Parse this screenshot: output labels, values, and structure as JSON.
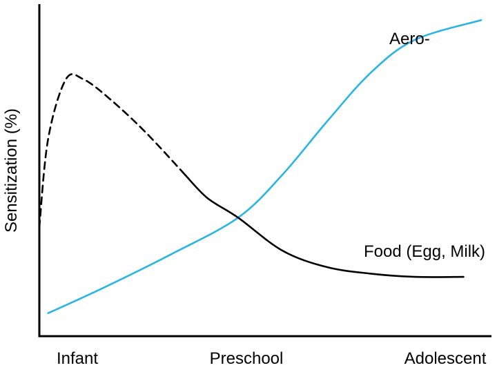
{
  "chart_data": {
    "type": "line",
    "ylabel": "Sensitization (%)",
    "xlabel": "",
    "title": "",
    "categories": [
      "Infant",
      "Preschool",
      "Adolescent"
    ],
    "xlim": [
      0,
      1
    ],
    "ylim": [
      0,
      100
    ],
    "grid": false,
    "legend": "none",
    "series": [
      {
        "name": "Aero-",
        "color": "#29b5e3",
        "style": "solid",
        "x": [
          0.02,
          0.15,
          0.3,
          0.45,
          0.55,
          0.65,
          0.75,
          0.85,
          1.0
        ],
        "y": [
          7,
          15,
          25,
          36,
          49,
          65,
          80,
          90,
          96
        ]
      },
      {
        "name": "Food (Egg, Milk)",
        "color": "#000000",
        "segments": [
          {
            "style": "dashed",
            "x": [
              0.0,
              0.02,
              0.06,
              0.1,
              0.16,
              0.24,
              0.33
            ],
            "y": [
              33,
              60,
              78,
              78,
              72,
              62,
              49
            ]
          },
          {
            "style": "solid",
            "x": [
              0.33,
              0.38,
              0.45,
              0.55,
              0.65,
              0.75,
              0.85,
              0.96
            ],
            "y": [
              49,
              42,
              36,
              26,
              21,
              19,
              18,
              18
            ]
          }
        ]
      }
    ]
  }
}
